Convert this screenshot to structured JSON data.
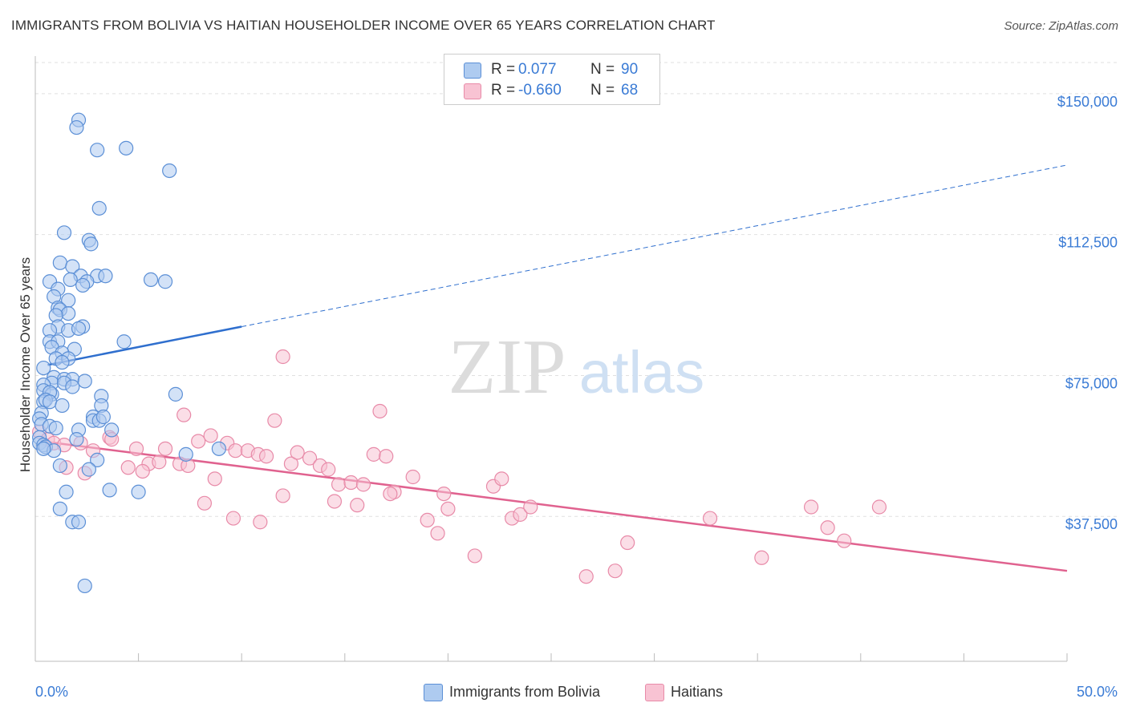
{
  "title": "IMMIGRANTS FROM BOLIVIA VS HAITIAN HOUSEHOLDER INCOME OVER 65 YEARS CORRELATION CHART",
  "source": "Source: ZipAtlas.com",
  "watermark": {
    "zip": "ZIP",
    "atlas": "atlas"
  },
  "colors": {
    "blue_fill": "#aecbf0",
    "blue_stroke": "#5b8fd6",
    "blue_line": "#2f6fce",
    "pink_fill": "#f8c3d3",
    "pink_stroke": "#e88aa8",
    "pink_line": "#e0628f",
    "tick_label": "#3a7bd5",
    "grid": "#e0e0e0"
  },
  "legend": {
    "rows": [
      {
        "r_label": "R =",
        "r_value": "0.077",
        "n_label": "N =",
        "n_value": "90"
      },
      {
        "r_label": "R =",
        "r_value": "-0.660",
        "n_label": "N =",
        "n_value": "68"
      }
    ]
  },
  "bottom_legend": [
    "Immigrants from Bolivia",
    "Haitians"
  ],
  "chart_data": {
    "type": "scatter",
    "ylabel": "Householder Income Over 65 years",
    "xlim": [
      0,
      50
    ],
    "ylim": [
      0,
      160000
    ],
    "x_tick_labels": [
      "0.0%",
      "50.0%"
    ],
    "y_ticks": [
      37500,
      75000,
      112500,
      150000
    ],
    "y_tick_labels": [
      "$37,500",
      "$75,000",
      "$112,500",
      "$150,000"
    ],
    "grid": "dashed horizontal",
    "series": [
      {
        "name": "Immigrants from Bolivia",
        "color": "blue",
        "trend": {
          "x": [
            0.6,
            10.0
          ],
          "y": [
            77800,
            88000
          ],
          "dashed_extension_to": [
            50,
            131000
          ]
        },
        "points": [
          [
            2.1,
            143000
          ],
          [
            2.0,
            141000
          ],
          [
            3.0,
            135000
          ],
          [
            4.4,
            135500
          ],
          [
            6.5,
            129500
          ],
          [
            3.1,
            119500
          ],
          [
            1.4,
            113000
          ],
          [
            2.6,
            111000
          ],
          [
            2.7,
            110000
          ],
          [
            1.2,
            105000
          ],
          [
            1.8,
            104000
          ],
          [
            2.2,
            101500
          ],
          [
            3.0,
            101500
          ],
          [
            3.4,
            101500
          ],
          [
            5.6,
            100500
          ],
          [
            6.3,
            100000
          ],
          [
            0.7,
            100000
          ],
          [
            1.7,
            100500
          ],
          [
            2.5,
            100000
          ],
          [
            2.3,
            99000
          ],
          [
            1.1,
            98000
          ],
          [
            0.9,
            96000
          ],
          [
            1.6,
            95000
          ],
          [
            1.1,
            93000
          ],
          [
            1.2,
            92500
          ],
          [
            1.6,
            91500
          ],
          [
            1.0,
            91000
          ],
          [
            2.3,
            88000
          ],
          [
            1.1,
            88000
          ],
          [
            0.7,
            87000
          ],
          [
            1.6,
            87000
          ],
          [
            2.1,
            87500
          ],
          [
            4.3,
            84000
          ],
          [
            0.7,
            84000
          ],
          [
            1.1,
            84000
          ],
          [
            0.8,
            82500
          ],
          [
            1.9,
            82000
          ],
          [
            1.3,
            81000
          ],
          [
            1.0,
            79500
          ],
          [
            1.6,
            79500
          ],
          [
            1.3,
            78500
          ],
          [
            0.4,
            77000
          ],
          [
            0.9,
            74500
          ],
          [
            1.4,
            74000
          ],
          [
            1.8,
            74000
          ],
          [
            2.4,
            73500
          ],
          [
            0.8,
            73000
          ],
          [
            1.4,
            73000
          ],
          [
            0.4,
            72500
          ],
          [
            1.8,
            72000
          ],
          [
            0.4,
            71000
          ],
          [
            0.8,
            70000
          ],
          [
            0.7,
            70500
          ],
          [
            3.2,
            69500
          ],
          [
            6.8,
            70000
          ],
          [
            0.4,
            68000
          ],
          [
            0.5,
            68500
          ],
          [
            0.7,
            68000
          ],
          [
            1.3,
            67000
          ],
          [
            3.2,
            67000
          ],
          [
            0.3,
            65000
          ],
          [
            2.8,
            64000
          ],
          [
            0.2,
            63500
          ],
          [
            2.8,
            63000
          ],
          [
            3.1,
            63000
          ],
          [
            0.3,
            62000
          ],
          [
            0.7,
            61500
          ],
          [
            2.1,
            60500
          ],
          [
            3.7,
            60500
          ],
          [
            2.0,
            58000
          ],
          [
            0.2,
            58500
          ],
          [
            0.2,
            57000
          ],
          [
            0.4,
            56500
          ],
          [
            0.5,
            56000
          ],
          [
            0.9,
            55000
          ],
          [
            7.3,
            54000
          ],
          [
            8.9,
            55500
          ],
          [
            0.4,
            55500
          ],
          [
            3.0,
            52500
          ],
          [
            1.2,
            51000
          ],
          [
            2.6,
            50000
          ],
          [
            1.5,
            44000
          ],
          [
            3.6,
            44500
          ],
          [
            5.0,
            44000
          ],
          [
            1.2,
            39500
          ],
          [
            1.8,
            36000
          ],
          [
            2.1,
            36000
          ],
          [
            2.4,
            19000
          ],
          [
            1.0,
            61000
          ],
          [
            3.3,
            64000
          ]
        ]
      },
      {
        "name": "Haitians",
        "color": "pink",
        "trend": {
          "x": [
            0.3,
            50
          ],
          "y": [
            57500,
            23000
          ]
        },
        "points": [
          [
            0.2,
            60000
          ],
          [
            0.6,
            58000
          ],
          [
            0.9,
            57000
          ],
          [
            1.4,
            56500
          ],
          [
            2.2,
            57000
          ],
          [
            2.8,
            55000
          ],
          [
            3.6,
            58500
          ],
          [
            4.9,
            55500
          ],
          [
            5.5,
            51500
          ],
          [
            6.3,
            55500
          ],
          [
            6.0,
            52000
          ],
          [
            7.0,
            51500
          ],
          [
            7.4,
            51000
          ],
          [
            7.9,
            57500
          ],
          [
            8.5,
            59000
          ],
          [
            9.3,
            57000
          ],
          [
            9.7,
            55000
          ],
          [
            10.3,
            55000
          ],
          [
            10.8,
            54000
          ],
          [
            11.2,
            53500
          ],
          [
            11.6,
            63000
          ],
          [
            12.4,
            51500
          ],
          [
            12.7,
            54500
          ],
          [
            13.3,
            53000
          ],
          [
            13.8,
            51000
          ],
          [
            14.2,
            50000
          ],
          [
            14.7,
            46000
          ],
          [
            15.3,
            46500
          ],
          [
            15.9,
            46000
          ],
          [
            16.4,
            54000
          ],
          [
            17.0,
            53500
          ],
          [
            17.4,
            44000
          ],
          [
            18.3,
            48000
          ],
          [
            19.0,
            36500
          ],
          [
            19.5,
            33000
          ],
          [
            20.0,
            39500
          ],
          [
            21.3,
            27000
          ],
          [
            22.2,
            45500
          ],
          [
            22.6,
            47500
          ],
          [
            23.1,
            37000
          ],
          [
            23.5,
            38000
          ],
          [
            24.0,
            40000
          ],
          [
            26.7,
            21500
          ],
          [
            28.1,
            23000
          ],
          [
            28.7,
            30500
          ],
          [
            32.7,
            37000
          ],
          [
            35.2,
            26500
          ],
          [
            37.6,
            40000
          ],
          [
            38.4,
            34500
          ],
          [
            39.2,
            31000
          ],
          [
            40.9,
            40000
          ],
          [
            12.0,
            80000
          ],
          [
            16.7,
            65500
          ],
          [
            7.2,
            64500
          ],
          [
            3.7,
            58000
          ],
          [
            4.5,
            50500
          ],
          [
            2.4,
            49000
          ],
          [
            1.5,
            50500
          ],
          [
            8.7,
            47500
          ],
          [
            8.2,
            41000
          ],
          [
            9.6,
            37000
          ],
          [
            10.9,
            36000
          ],
          [
            14.5,
            41500
          ],
          [
            15.6,
            40500
          ],
          [
            17.2,
            43500
          ],
          [
            19.8,
            43500
          ],
          [
            12.0,
            43000
          ],
          [
            5.2,
            49500
          ]
        ]
      }
    ]
  }
}
